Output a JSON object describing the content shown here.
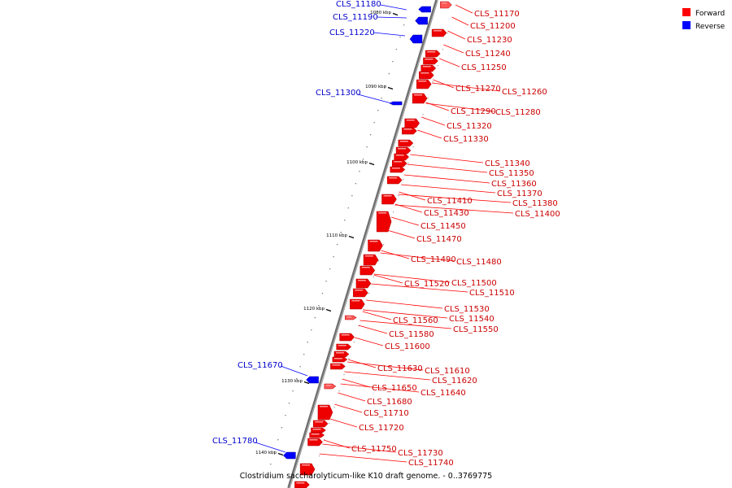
{
  "caption": "Clostridium saccharolyticum-like K10 draft genome. - 0..3769775",
  "legend": [
    {
      "label": "Forward",
      "color": "#ff0000"
    },
    {
      "label": "Reverse",
      "color": "#0000ff"
    }
  ],
  "ticks": [
    "1080 kbp",
    "1090 kbp",
    "1100 kbp",
    "1110 kbp",
    "1120 kbp",
    "1130 kbp",
    "1140 kbp"
  ],
  "reverse_labels": [
    "CLS_11180",
    "CLS_11190",
    "CLS_11220",
    "CLS_11300",
    "CLS_11670",
    "CLS_11780"
  ],
  "forward_labels": [
    "CLS_11170",
    "CLS_11200",
    "CLS_11230",
    "CLS_11240",
    "CLS_11250",
    "CLS_11270",
    "CLS_11260",
    "CLS_11290",
    "CLS_11280",
    "CLS_11320",
    "CLS_11330",
    "CLS_11340",
    "CLS_11350",
    "CLS_11360",
    "CLS_11370",
    "CLS_11410",
    "CLS_11380",
    "CLS_11430",
    "CLS_11400",
    "CLS_11450",
    "CLS_11470",
    "CLS_11490",
    "CLS_11480",
    "CLS_11500",
    "CLS_11520",
    "CLS_11510",
    "CLS_11530",
    "CLS_11540",
    "CLS_11560",
    "CLS_11550",
    "CLS_11580",
    "CLS_11600",
    "CLS_11630",
    "CLS_11610",
    "CLS_11620",
    "CLS_11650",
    "CLS_11640",
    "CLS_11680",
    "CLS_11710",
    "CLS_11720",
    "CLS_11750",
    "CLS_11730",
    "CLS_11740"
  ],
  "colors": {
    "forward": "#ff0000",
    "reverse": "#0000ff",
    "backbone": "#808080",
    "label_forward": "#cc0000",
    "label_reverse": "#0000cc"
  }
}
